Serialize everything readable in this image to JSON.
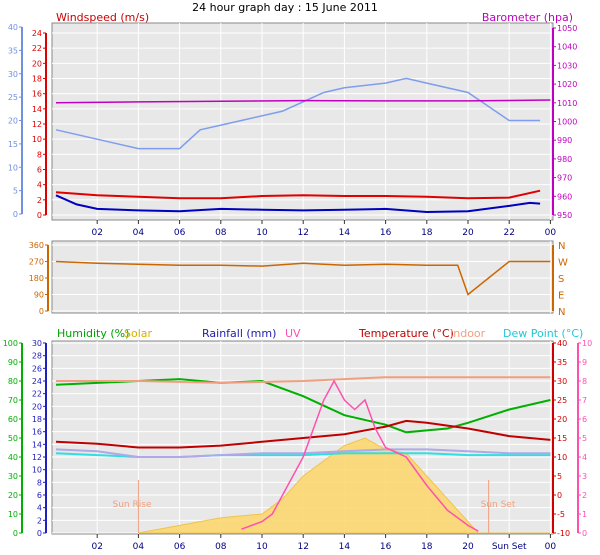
{
  "chart_data": [
    {
      "type": "line",
      "title": "24 hour graph day : 15 June 2011",
      "left_axis_label": "Windspeed (m/s)",
      "right_axis_label": "Barometer (hpa)",
      "x_ticks": [
        "02",
        "04",
        "06",
        "08",
        "10",
        "12",
        "14",
        "16",
        "18",
        "20",
        "22",
        "00"
      ],
      "y_left": {
        "range": [
          0,
          40
        ],
        "ticks": [
          0,
          5,
          10,
          15,
          20,
          25,
          30,
          35,
          40
        ],
        "color": "#7090e0"
      },
      "y_left_inner": {
        "range": [
          0,
          24
        ],
        "ticks": [
          0,
          2,
          4,
          6,
          8,
          10,
          12,
          14,
          16,
          18,
          20,
          22,
          24
        ],
        "color": "#e00000"
      },
      "y_right": {
        "range": [
          950,
          1050
        ],
        "ticks": [
          950,
          960,
          970,
          980,
          990,
          1000,
          1010,
          1020,
          1030,
          1040,
          1050
        ],
        "color": "#c000c0"
      },
      "series": [
        {
          "name": "Windspeed (m/s)",
          "color": "#e00000",
          "axis": "left_inner",
          "x": [
            0,
            2,
            4,
            6,
            8,
            10,
            12,
            14,
            16,
            18,
            20,
            22,
            23.5
          ],
          "y": [
            3.0,
            2.6,
            2.4,
            2.2,
            2.2,
            2.5,
            2.6,
            2.5,
            2.5,
            2.4,
            2.2,
            2.3,
            3.2
          ]
        },
        {
          "color": "#7f9dee",
          "axis": "left",
          "x": [
            0,
            2,
            4,
            6,
            7,
            9,
            11,
            13,
            14,
            16,
            17,
            18,
            20,
            22,
            23.5
          ],
          "y": [
            18,
            16,
            14,
            14,
            18,
            20,
            22,
            26,
            27,
            28,
            29,
            28,
            26,
            20,
            20
          ]
        },
        {
          "color": "#0000c0",
          "axis": "left_inner",
          "x": [
            0,
            1,
            2,
            4,
            6,
            8,
            10,
            12,
            14,
            16,
            18,
            20,
            22,
            23,
            23.5
          ],
          "y": [
            2.6,
            1.4,
            0.8,
            0.6,
            0.5,
            0.8,
            0.7,
            0.6,
            0.7,
            0.8,
            0.4,
            0.5,
            1.2,
            1.6,
            1.5
          ]
        },
        {
          "name": "Barometer (hpa)",
          "color": "#c000c0",
          "axis": "right",
          "x": [
            0,
            4,
            8,
            12,
            16,
            20,
            24
          ],
          "y": [
            1010,
            1010.5,
            1010.8,
            1011.2,
            1011,
            1011,
            1011.5
          ]
        }
      ]
    },
    {
      "type": "line",
      "y_range": [
        0,
        360
      ],
      "y_ticks": [
        0,
        90,
        180,
        270,
        360
      ],
      "compass_labels": [
        "N",
        "W",
        "S",
        "E",
        "N"
      ],
      "series": [
        {
          "color": "#cc6600",
          "x": [
            0,
            2,
            4,
            6,
            8,
            10,
            12,
            14,
            16,
            18,
            19.5,
            20,
            22,
            24
          ],
          "y": [
            270,
            260,
            255,
            250,
            250,
            245,
            260,
            250,
            255,
            250,
            250,
            90,
            270,
            270
          ]
        }
      ]
    },
    {
      "type": "line",
      "legend": [
        "Humidity (%)",
        "Solar",
        "Rainfall (mm)",
        "UV",
        "Temperature (°C)",
        "Indoor",
        "Dew Point (°C)"
      ],
      "x_ticks": [
        "02",
        "04",
        "06",
        "08",
        "10",
        "12",
        "14",
        "16",
        "18",
        "20",
        "Sun Set",
        "00"
      ],
      "annotations": [
        "Sun Rise",
        "Sun Set"
      ],
      "y_humidity": {
        "range": [
          0,
          100
        ],
        "ticks": [
          0,
          10,
          20,
          30,
          40,
          50,
          60,
          70,
          80,
          90,
          100
        ],
        "color": "#00b000"
      },
      "y_rainfall": {
        "range": [
          0,
          30
        ],
        "ticks": [
          0,
          2,
          4,
          6,
          8,
          10,
          12,
          14,
          16,
          18,
          20,
          22,
          24,
          26,
          28,
          30
        ],
        "color": "#2020c0"
      },
      "y_temperature": {
        "range": [
          -10,
          40
        ],
        "ticks": [
          -10,
          -5,
          0,
          5,
          10,
          15,
          20,
          25,
          30,
          35,
          40
        ],
        "color": "#d00000"
      },
      "y_uv": {
        "range": [
          0,
          10
        ],
        "ticks": [
          0,
          1,
          2,
          3,
          4,
          5,
          6,
          7,
          8,
          9,
          10
        ],
        "color": "#ff50b0"
      },
      "series": [
        {
          "name": "Humidity (%)",
          "color": "#00b000",
          "axis": "humidity",
          "x": [
            0,
            2,
            4,
            6,
            8,
            10,
            12,
            13,
            14,
            16,
            17,
            18,
            19,
            20,
            22,
            24
          ],
          "y": [
            78,
            79,
            80,
            81,
            79,
            80,
            72,
            67,
            62,
            57,
            53,
            54,
            55,
            58,
            65,
            70
          ]
        },
        {
          "name": "Indoor",
          "color": "#f0a080",
          "axis": "temperature",
          "x": [
            0,
            4,
            8,
            12,
            16,
            20,
            24
          ],
          "y": [
            30,
            30,
            29.5,
            30,
            31,
            31,
            31
          ]
        },
        {
          "name": "Temperature (°C)",
          "color": "#c00000",
          "axis": "temperature",
          "x": [
            0,
            2,
            4,
            6,
            8,
            10,
            12,
            14,
            16,
            17,
            18,
            20,
            22,
            24
          ],
          "y": [
            14,
            13.5,
            12.5,
            12.5,
            13,
            14,
            15,
            16,
            18,
            19.5,
            19,
            17.5,
            15.5,
            14.5
          ]
        },
        {
          "name": "Dew Point (°C)",
          "color": "#30e0e0",
          "axis": "temperature",
          "x": [
            0,
            2,
            4,
            6,
            8,
            10,
            12,
            14,
            16,
            18,
            20,
            22,
            24
          ],
          "y": [
            11,
            10.5,
            10,
            10,
            10.5,
            10.5,
            10.5,
            11,
            11,
            11,
            10.5,
            10.5,
            10.5
          ]
        },
        {
          "color": "#b0a8e8",
          "axis": "temperature",
          "x": [
            0,
            2,
            4,
            6,
            8,
            10,
            12,
            14,
            16,
            18,
            20,
            22,
            24
          ],
          "y": [
            12,
            11.5,
            10,
            10,
            10.5,
            11,
            11,
            11.5,
            12,
            12,
            11.5,
            11,
            11
          ]
        },
        {
          "name": "Solar",
          "color": "#f5c040",
          "axis": "temperature",
          "fill": true,
          "x": [
            4,
            6,
            8,
            10,
            11,
            12,
            13,
            14,
            15,
            16,
            17,
            18,
            19,
            20.5,
            21,
            24
          ],
          "y": [
            -10,
            -8,
            -6,
            -5,
            -1,
            5,
            9,
            13,
            15,
            12,
            11,
            5,
            -1,
            -10,
            -10,
            -10
          ]
        },
        {
          "name": "UV",
          "color": "#ff50b0",
          "axis": "uv",
          "x": [
            9,
            10,
            10.5,
            11,
            12,
            13,
            13.5,
            14,
            14.5,
            15,
            15.5,
            16,
            17,
            18,
            19,
            20,
            20.5
          ],
          "y": [
            0.2,
            0.6,
            1,
            2,
            4,
            7,
            8,
            7,
            6.5,
            7,
            5.5,
            4.5,
            4,
            2.5,
            1.2,
            0.4,
            0.1
          ]
        }
      ]
    }
  ]
}
